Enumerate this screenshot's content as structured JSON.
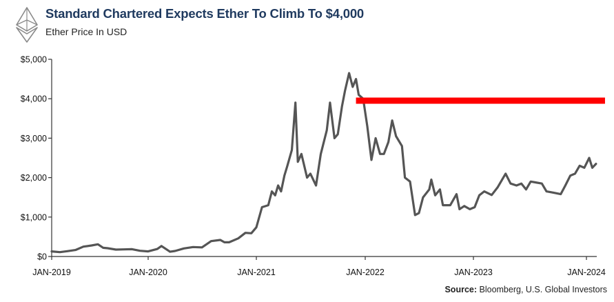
{
  "header": {
    "title": "Standard Chartered Expects Ether To Climb To $4,000",
    "subtitle": "Ether Price In USD",
    "logo_icon": "ethereum-icon"
  },
  "source": {
    "label": "Source:",
    "text": "Bloomberg, U.S. Global Investors"
  },
  "colors": {
    "line": "#555555",
    "target": "#ff0000",
    "axis": "#333333",
    "title": "#1f3a5f"
  },
  "chart_data": {
    "type": "line",
    "title": "Standard Chartered Expects Ether To Climb To $4,000",
    "subtitle": "Ether Price In USD",
    "xlabel": "",
    "ylabel": "",
    "x_range": [
      "2019-01-01",
      "2024-03-01"
    ],
    "ylim": [
      0,
      5000
    ],
    "grid": false,
    "y_ticks": [
      {
        "value": 0,
        "label": "$0"
      },
      {
        "value": 1000,
        "label": "$1,000"
      },
      {
        "value": 2000,
        "label": "$2,000"
      },
      {
        "value": 3000,
        "label": "$3,000"
      },
      {
        "value": 4000,
        "label": "$4,000"
      },
      {
        "value": 5000,
        "label": "$5,000"
      }
    ],
    "x_ticks": [
      {
        "date": "2019-01-01",
        "label": "JAN-2019"
      },
      {
        "date": "2020-01-01",
        "label": "JAN-2020"
      },
      {
        "date": "2021-01-01",
        "label": "JAN-2021"
      },
      {
        "date": "2022-01-01",
        "label": "JAN-2022"
      },
      {
        "date": "2023-01-01",
        "label": "JAN-2023"
      },
      {
        "date": "2024-01-01",
        "label": "JAN-2024"
      }
    ],
    "series": [
      {
        "name": "",
        "points": [
          [
            "2019-01-01",
            130
          ],
          [
            "2019-02-01",
            110
          ],
          [
            "2019-03-01",
            135
          ],
          [
            "2019-04-01",
            165
          ],
          [
            "2019-05-01",
            250
          ],
          [
            "2019-06-01",
            280
          ],
          [
            "2019-06-25",
            310
          ],
          [
            "2019-07-15",
            220
          ],
          [
            "2019-08-01",
            210
          ],
          [
            "2019-09-01",
            175
          ],
          [
            "2019-10-01",
            180
          ],
          [
            "2019-11-01",
            185
          ],
          [
            "2019-12-01",
            145
          ],
          [
            "2020-01-01",
            130
          ],
          [
            "2020-02-01",
            190
          ],
          [
            "2020-02-15",
            265
          ],
          [
            "2020-03-15",
            120
          ],
          [
            "2020-04-01",
            140
          ],
          [
            "2020-05-01",
            205
          ],
          [
            "2020-06-01",
            240
          ],
          [
            "2020-07-01",
            230
          ],
          [
            "2020-08-01",
            390
          ],
          [
            "2020-09-01",
            420
          ],
          [
            "2020-09-15",
            360
          ],
          [
            "2020-10-01",
            360
          ],
          [
            "2020-11-01",
            460
          ],
          [
            "2020-11-25",
            600
          ],
          [
            "2020-12-15",
            590
          ],
          [
            "2021-01-01",
            740
          ],
          [
            "2021-01-20",
            1250
          ],
          [
            "2021-02-10",
            1300
          ],
          [
            "2021-02-22",
            1650
          ],
          [
            "2021-03-05",
            1550
          ],
          [
            "2021-03-15",
            1800
          ],
          [
            "2021-03-25",
            1650
          ],
          [
            "2021-04-05",
            2050
          ],
          [
            "2021-04-15",
            2300
          ],
          [
            "2021-04-30",
            2700
          ],
          [
            "2021-05-12",
            3900
          ],
          [
            "2021-05-20",
            2400
          ],
          [
            "2021-06-01",
            2600
          ],
          [
            "2021-06-20",
            2000
          ],
          [
            "2021-07-01",
            2100
          ],
          [
            "2021-07-20",
            1800
          ],
          [
            "2021-08-05",
            2600
          ],
          [
            "2021-08-25",
            3200
          ],
          [
            "2021-09-05",
            3900
          ],
          [
            "2021-09-20",
            3000
          ],
          [
            "2021-10-01",
            3100
          ],
          [
            "2021-10-15",
            3800
          ],
          [
            "2021-10-25",
            4200
          ],
          [
            "2021-11-08",
            4650
          ],
          [
            "2021-11-20",
            4300
          ],
          [
            "2021-12-01",
            4500
          ],
          [
            "2021-12-10",
            4100
          ],
          [
            "2021-12-25",
            4000
          ],
          [
            "2022-01-08",
            3300
          ],
          [
            "2022-01-22",
            2450
          ],
          [
            "2022-02-05",
            3000
          ],
          [
            "2022-02-20",
            2600
          ],
          [
            "2022-03-05",
            2600
          ],
          [
            "2022-03-20",
            2900
          ],
          [
            "2022-04-02",
            3450
          ],
          [
            "2022-04-15",
            3050
          ],
          [
            "2022-05-05",
            2800
          ],
          [
            "2022-05-15",
            2000
          ],
          [
            "2022-06-01",
            1900
          ],
          [
            "2022-06-18",
            1050
          ],
          [
            "2022-07-01",
            1100
          ],
          [
            "2022-07-15",
            1500
          ],
          [
            "2022-08-05",
            1700
          ],
          [
            "2022-08-12",
            1950
          ],
          [
            "2022-08-25",
            1550
          ],
          [
            "2022-09-10",
            1700
          ],
          [
            "2022-09-20",
            1300
          ],
          [
            "2022-10-15",
            1300
          ],
          [
            "2022-11-05",
            1580
          ],
          [
            "2022-11-15",
            1200
          ],
          [
            "2022-12-01",
            1280
          ],
          [
            "2022-12-20",
            1200
          ],
          [
            "2023-01-05",
            1250
          ],
          [
            "2023-01-20",
            1550
          ],
          [
            "2023-02-05",
            1650
          ],
          [
            "2023-03-01",
            1560
          ],
          [
            "2023-03-20",
            1750
          ],
          [
            "2023-04-15",
            2100
          ],
          [
            "2023-05-01",
            1850
          ],
          [
            "2023-05-20",
            1800
          ],
          [
            "2023-06-05",
            1850
          ],
          [
            "2023-06-20",
            1700
          ],
          [
            "2023-07-05",
            1900
          ],
          [
            "2023-07-20",
            1880
          ],
          [
            "2023-08-10",
            1850
          ],
          [
            "2023-08-25",
            1650
          ],
          [
            "2023-09-15",
            1620
          ],
          [
            "2023-10-10",
            1580
          ],
          [
            "2023-10-25",
            1800
          ],
          [
            "2023-11-10",
            2050
          ],
          [
            "2023-11-25",
            2100
          ],
          [
            "2023-12-10",
            2300
          ],
          [
            "2023-12-25",
            2250
          ],
          [
            "2024-01-10",
            2500
          ],
          [
            "2024-01-20",
            2250
          ],
          [
            "2024-02-01",
            2350
          ]
        ]
      }
    ],
    "target_line": {
      "value": 3950,
      "start": "2021-12-01",
      "end": "2024-03-01"
    }
  }
}
